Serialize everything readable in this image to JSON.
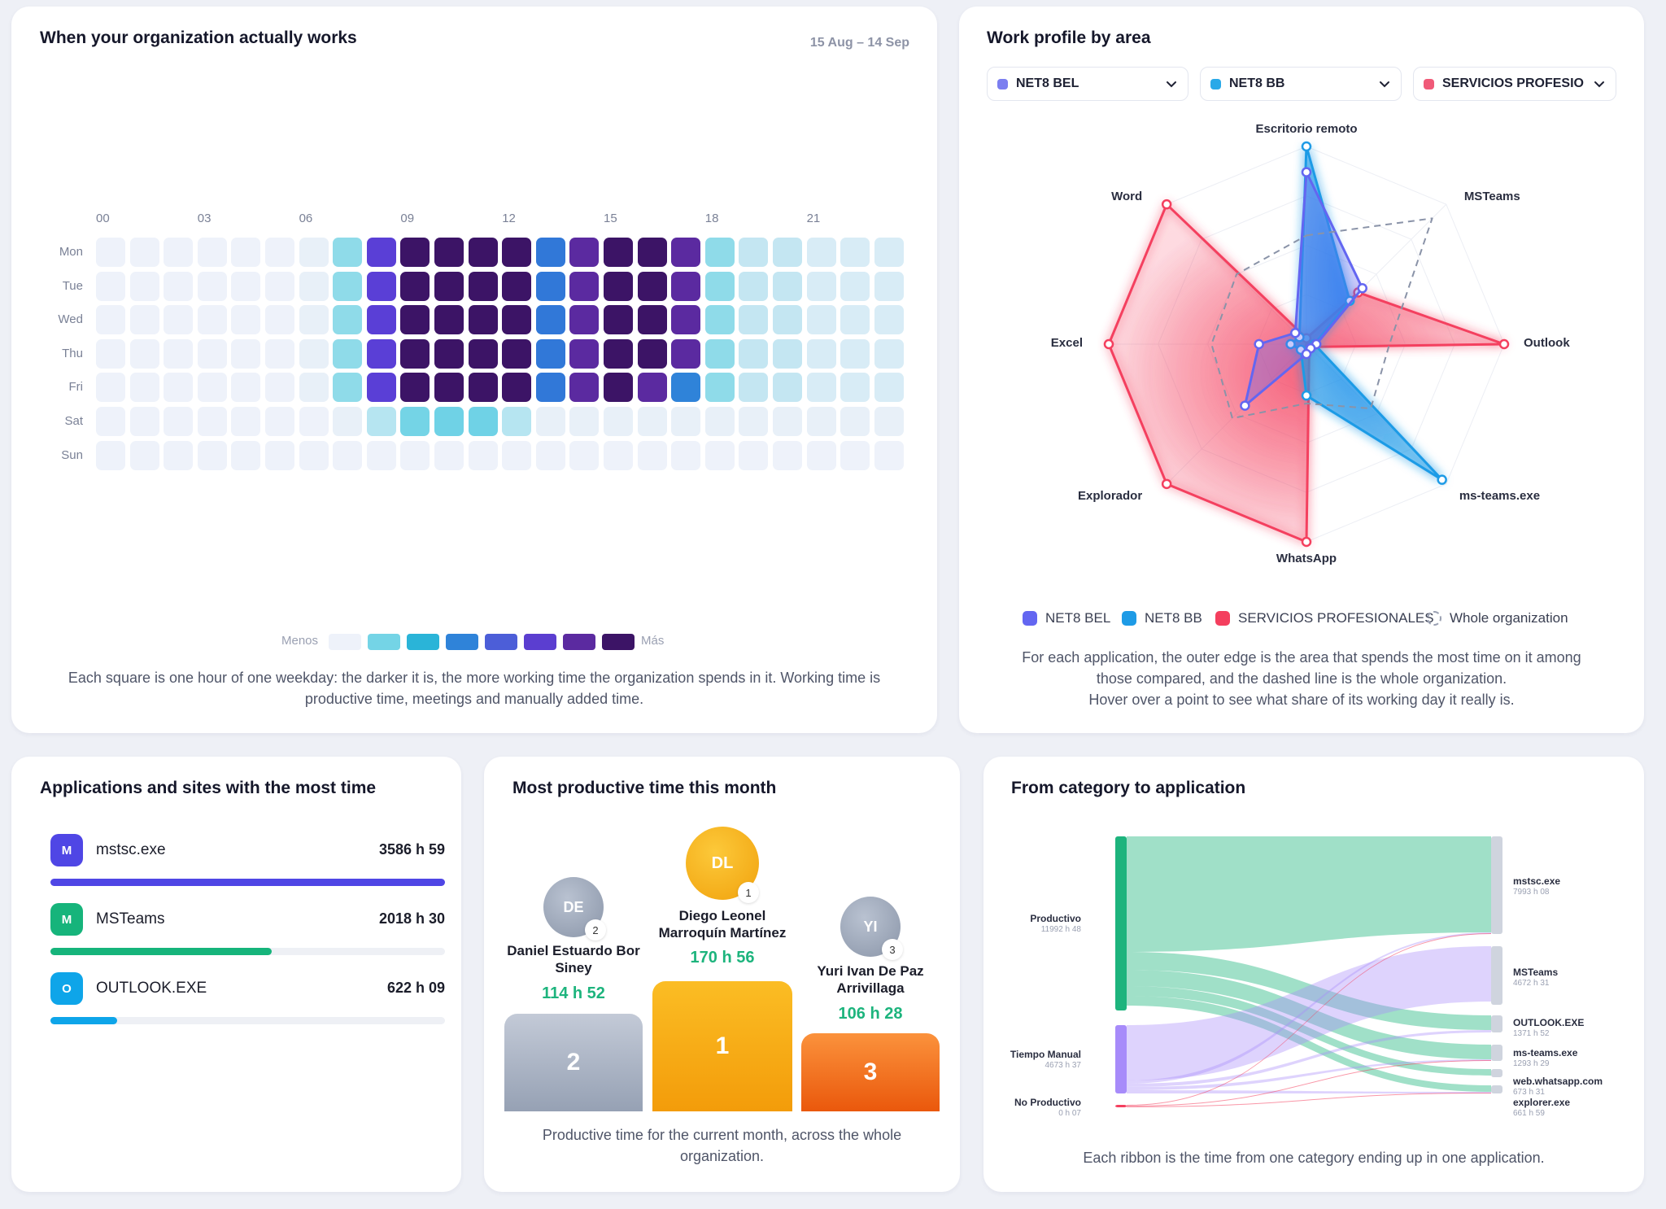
{
  "heatmap": {
    "title": "When your organization actually works",
    "range": "15 Aug – 14 Sep",
    "hours": [
      "00",
      "03",
      "06",
      "09",
      "12",
      "15",
      "18",
      "21"
    ],
    "days": [
      "Mon",
      "Tue",
      "Wed",
      "Thu",
      "Fri",
      "Sat",
      "Sun"
    ],
    "grid": [
      [
        0,
        0,
        0,
        0,
        0,
        0,
        0,
        1,
        4,
        6,
        6,
        6,
        6,
        3,
        5,
        6,
        6,
        5,
        1,
        0,
        0,
        0,
        0,
        0
      ],
      [
        0,
        0,
        0,
        0,
        0,
        0,
        0,
        1,
        4,
        6,
        6,
        6,
        6,
        3,
        5,
        6,
        6,
        5,
        1,
        0,
        0,
        0,
        0,
        0
      ],
      [
        0,
        0,
        0,
        0,
        0,
        0,
        0,
        1,
        4,
        6,
        6,
        6,
        6,
        3,
        5,
        6,
        6,
        5,
        1,
        0,
        0,
        0,
        0,
        0
      ],
      [
        0,
        0,
        0,
        0,
        0,
        0,
        0,
        1,
        4,
        6,
        6,
        6,
        6,
        3,
        5,
        6,
        6,
        5,
        1,
        0,
        0,
        0,
        0,
        0
      ],
      [
        0,
        0,
        0,
        0,
        0,
        0,
        0,
        1,
        4,
        6,
        6,
        6,
        6,
        3,
        5,
        6,
        5,
        3,
        1,
        0,
        0,
        0,
        0,
        0
      ],
      [
        0,
        0,
        0,
        0,
        0,
        0,
        0,
        0,
        0,
        1,
        1,
        1,
        0,
        0,
        0,
        0,
        0,
        0,
        0,
        0,
        0,
        0,
        0,
        0
      ],
      [
        0,
        0,
        0,
        0,
        0,
        0,
        0,
        0,
        0,
        0,
        0,
        0,
        0,
        0,
        0,
        0,
        0,
        0,
        0,
        0,
        0,
        0,
        0,
        0
      ]
    ],
    "secondary_levels": [
      [
        0,
        0,
        0,
        0,
        0,
        0,
        1,
        2,
        0,
        0,
        0,
        0,
        0,
        0,
        0,
        0,
        0,
        0,
        2,
        3,
        3,
        2,
        2,
        2
      ],
      [
        0,
        0,
        0,
        0,
        0,
        0,
        1,
        2,
        0,
        0,
        0,
        0,
        0,
        0,
        0,
        0,
        0,
        0,
        2,
        3,
        3,
        2,
        2,
        2
      ],
      [
        0,
        0,
        0,
        0,
        0,
        0,
        1,
        2,
        0,
        0,
        0,
        0,
        0,
        0,
        0,
        0,
        0,
        0,
        2,
        3,
        3,
        2,
        2,
        2
      ],
      [
        0,
        0,
        0,
        0,
        0,
        0,
        1,
        2,
        0,
        0,
        0,
        0,
        0,
        0,
        0,
        0,
        0,
        0,
        2,
        3,
        3,
        2,
        2,
        2
      ],
      [
        0,
        0,
        0,
        0,
        0,
        0,
        1,
        2,
        0,
        0,
        0,
        0,
        0,
        0,
        0,
        0,
        0,
        0,
        2,
        3,
        3,
        2,
        2,
        2
      ],
      [
        0,
        0,
        0,
        0,
        0,
        0,
        0,
        1,
        1,
        0,
        0,
        0,
        0,
        1,
        1,
        1,
        1,
        1,
        1,
        1,
        1,
        1,
        1,
        1
      ],
      [
        0,
        0,
        0,
        0,
        0,
        0,
        0,
        0,
        0,
        0,
        0,
        0,
        0,
        0,
        0,
        0,
        0,
        0,
        0,
        0,
        0,
        0,
        0,
        0
      ]
    ],
    "legend_less": "Menos",
    "legend_more": "Más",
    "caption": "Each square is one hour of one weekday: the darker it is, the more working time the organization spends in it. Working time is productive time, meetings and manually added time."
  },
  "radar": {
    "title": "Work profile by area",
    "selects": [
      {
        "label": "NET8 BEL",
        "color": "#7b7ef0"
      },
      {
        "label": "NET8 BB",
        "color": "#29a9e8"
      },
      {
        "label": "SERVICIOS PROFESIONALES",
        "color": "#f05a78"
      }
    ],
    "axes": [
      "Escritorio remoto",
      "MSTeams",
      "Outlook",
      "ms-teams.exe",
      "WhatsApp",
      "Explorador",
      "Excel",
      "Word"
    ],
    "legend": [
      "NET8 BEL",
      "NET8 BB",
      "SERVICIOS PROFESIONALES",
      "Whole organization"
    ],
    "caption_1": "For each application, the outer edge is the area that spends the most time on it among",
    "caption_2": "those compared, and the dashed line is the whole organization.",
    "caption_3": "Hover over a point to see what share of its working day it really is."
  },
  "chart_data": {
    "type": "radar",
    "axes": [
      "Escritorio remoto",
      "MSTeams",
      "Outlook",
      "ms-teams.exe",
      "WhatsApp",
      "Explorador",
      "Excel",
      "Word"
    ],
    "range": [
      0,
      1
    ],
    "series": [
      {
        "name": "NET8 BEL",
        "color": "#6366f1",
        "values": [
          0.87,
          0.4,
          0.05,
          0.03,
          0.05,
          0.44,
          0.24,
          0.08
        ]
      },
      {
        "name": "NET8 BB",
        "color": "#1e9be6",
        "values": [
          1.0,
          0.31,
          0.04,
          0.97,
          0.26,
          0.04,
          0.08,
          0.05
        ]
      },
      {
        "name": "SERVICIOS PROFESIONALES",
        "color": "#f43f5e",
        "values": [
          0.03,
          0.37,
          1.0,
          0.02,
          1.0,
          1.0,
          1.0,
          1.0
        ]
      },
      {
        "name": "Whole organization",
        "color": "#8a93a8",
        "values": [
          0.55,
          0.9,
          0.42,
          0.46,
          0.3,
          0.53,
          0.48,
          0.5
        ]
      }
    ]
  },
  "apps": {
    "title": "Applications and sites with the most time",
    "items": [
      {
        "letter": "M",
        "name": "mstsc.exe",
        "value": "3586 h 59",
        "color": "#4f46e5",
        "ratio": 1.0
      },
      {
        "letter": "M",
        "name": "MSTeams",
        "value": "2018 h 30",
        "color": "#16b47b",
        "ratio": 0.56
      },
      {
        "letter": "O",
        "name": "OUTLOOK.EXE",
        "value": "622 h 09",
        "color": "#0ea5e9",
        "ratio": 0.17
      }
    ]
  },
  "podium": {
    "title": "Most productive time this month",
    "first": {
      "initials": "DL",
      "rank": "1",
      "name_1": "Diego Leonel",
      "name_2": "Marroquín Martínez",
      "time": "170 h 56",
      "block": "1"
    },
    "second": {
      "initials": "DE",
      "rank": "2",
      "name_1": "Daniel Estuardo Bor",
      "name_2": "Siney",
      "time": "114 h 52",
      "block": "2"
    },
    "third": {
      "initials": "YI",
      "rank": "3",
      "name_1": "Yuri Ivan De Paz",
      "name_2": "Arrivillaga",
      "time": "106 h 28",
      "block": "3"
    },
    "caption": "Productive time for the current month, across the whole organization."
  },
  "sankey": {
    "title": "From category to application",
    "sources": [
      {
        "name": "Productivo",
        "value": "11992 h 48",
        "color": "#1db47d"
      },
      {
        "name": "Tiempo Manual",
        "value": "4673 h 37",
        "color": "#a78bfa"
      },
      {
        "name": "No Productivo",
        "value": "0 h 07",
        "color": "#f43f5e"
      }
    ],
    "targets": [
      {
        "name": "mstsc.exe",
        "value": "7993 h 08"
      },
      {
        "name": "MSTeams",
        "value": "4672 h 31"
      },
      {
        "name": "OUTLOOK.EXE",
        "value": "1371 h 52"
      },
      {
        "name": "ms-teams.exe",
        "value": "1293 h 29"
      },
      {
        "name": "web.whatsapp.com",
        "value": "673 h 31"
      },
      {
        "name": "explorer.exe",
        "value": "661 h 59"
      }
    ],
    "caption": "Each ribbon is the time from one category ending up in one application."
  }
}
